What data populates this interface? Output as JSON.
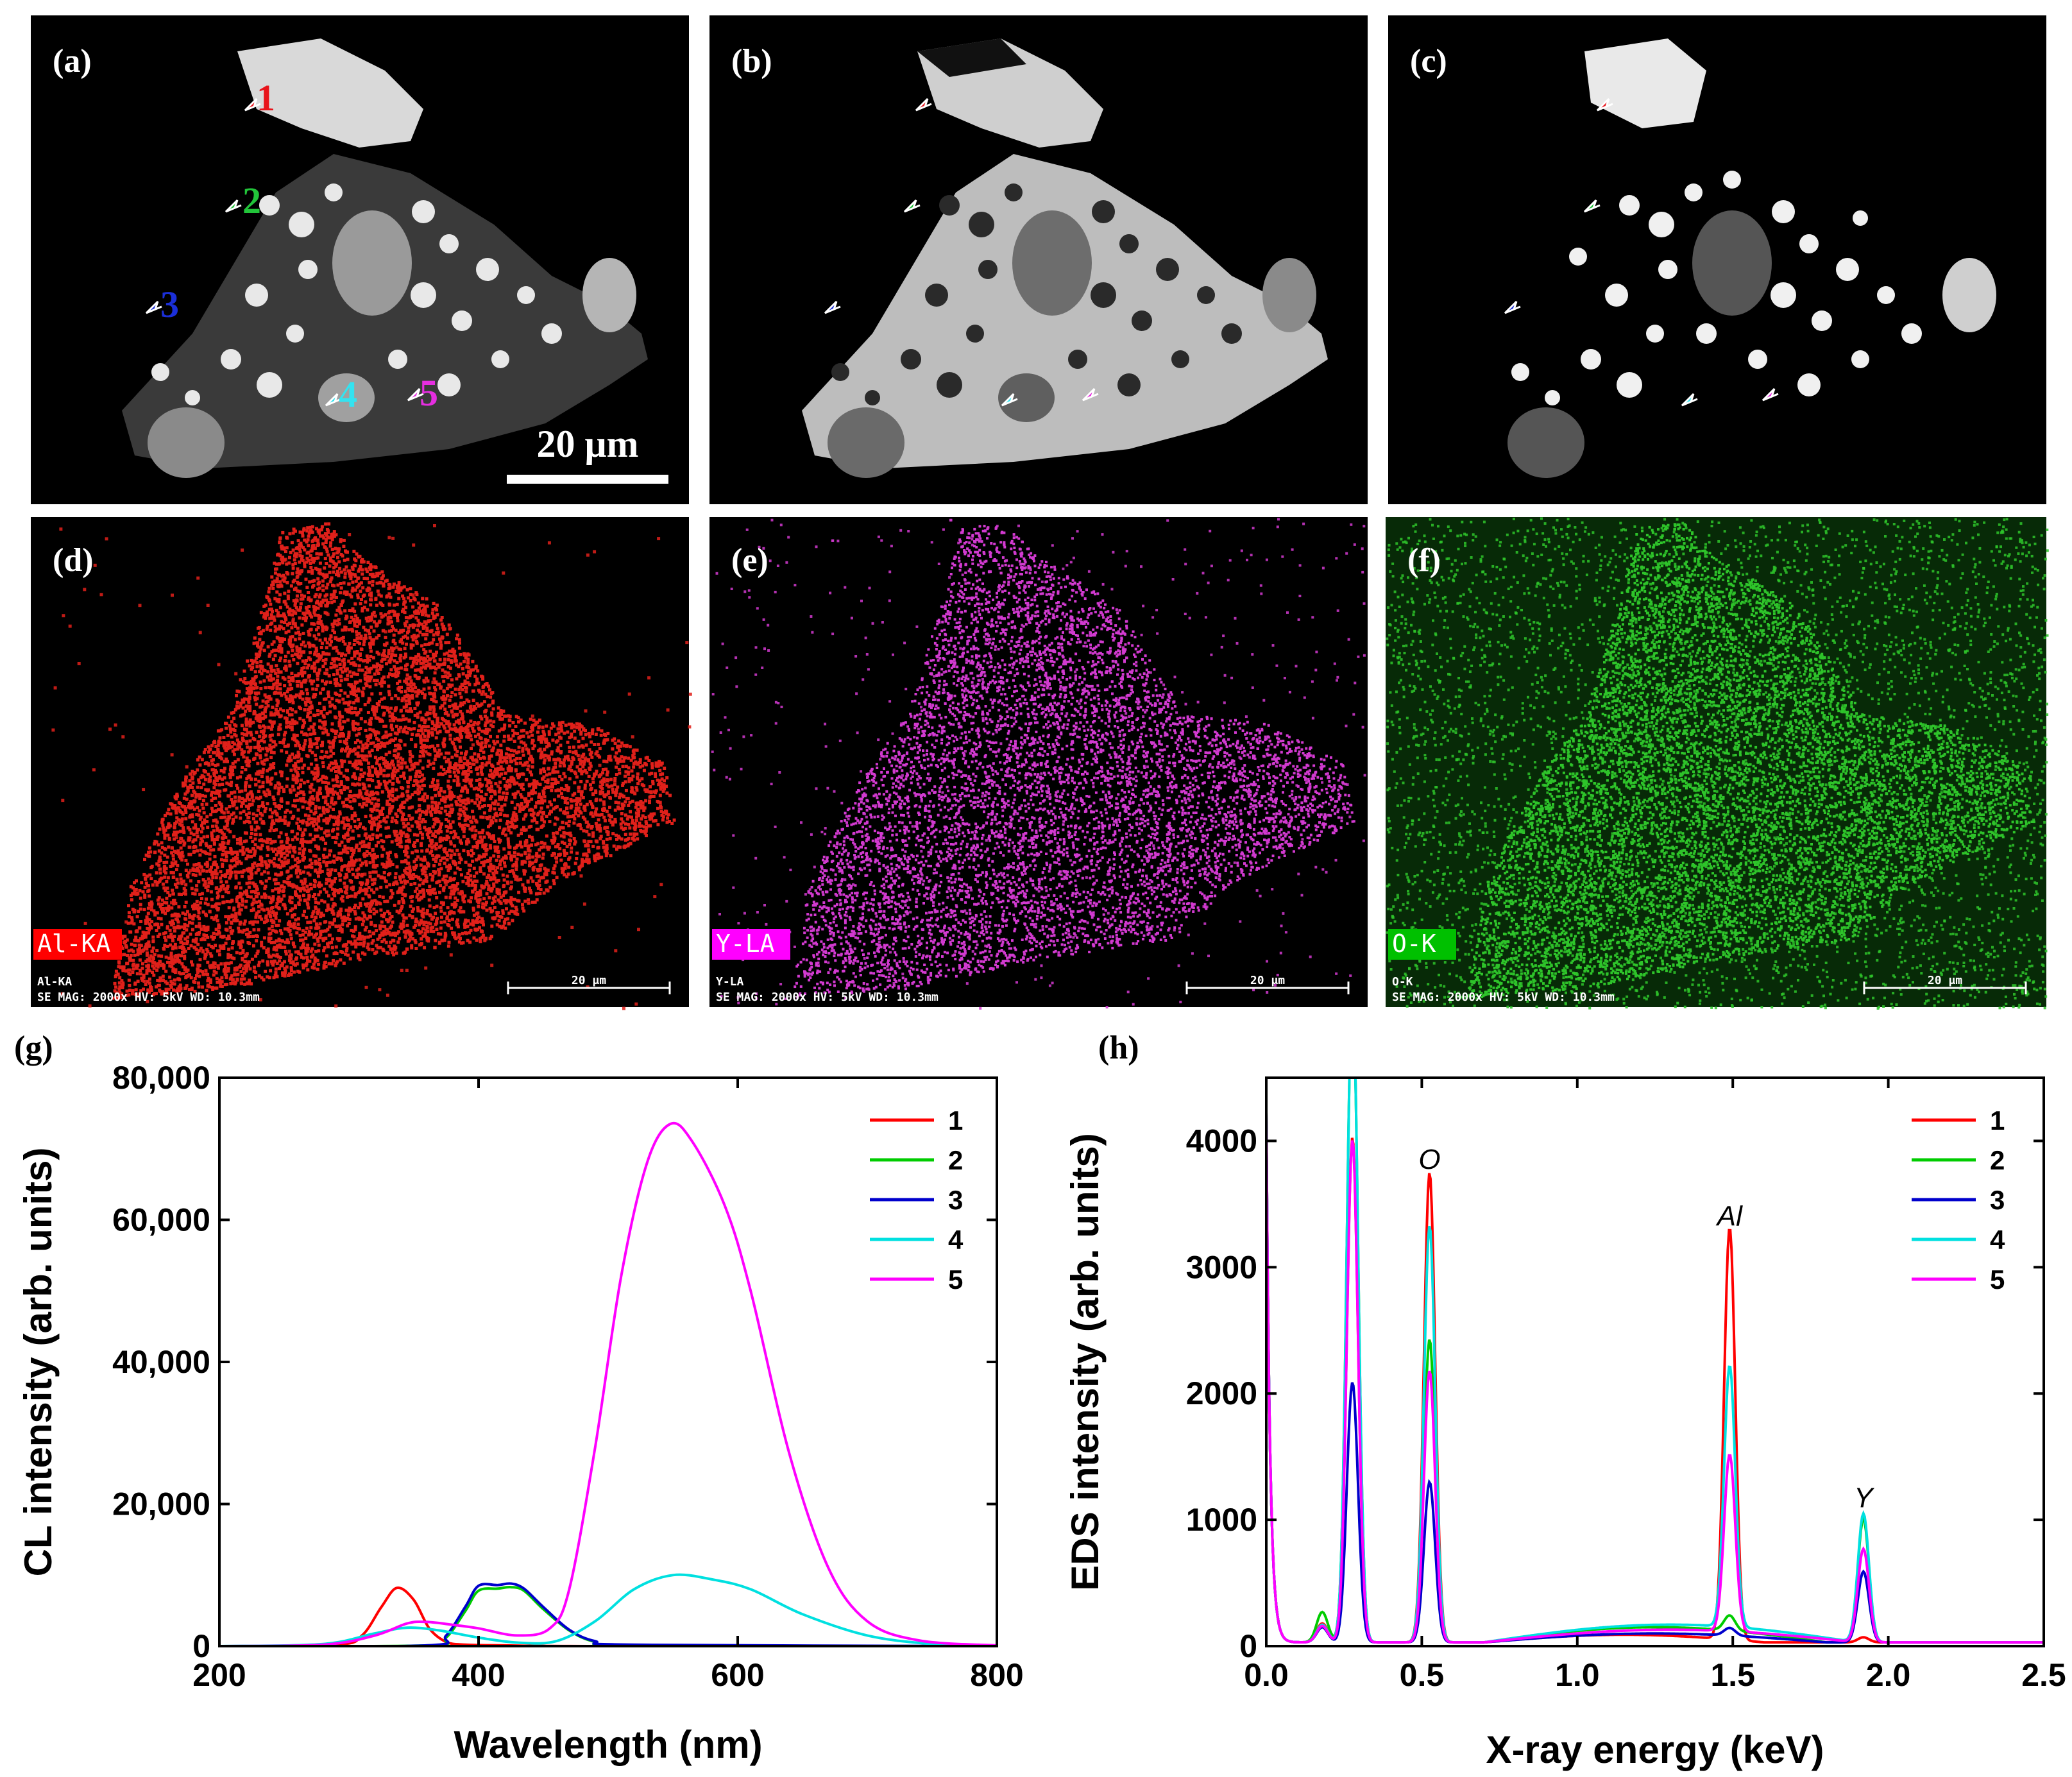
{
  "micrographs": {
    "scale_bar_text": "20 μm",
    "panels": [
      {
        "letter": "(a)",
        "markers": [
          "1",
          "2",
          "3",
          "4",
          "5"
        ]
      },
      {
        "letter": "(b)"
      },
      {
        "letter": "(c)"
      }
    ],
    "marker_colors": [
      "#e8141b",
      "#22c53a",
      "#1b2fd8",
      "#33e3f0",
      "#e62ee0"
    ]
  },
  "eds_maps": [
    {
      "letter": "(d)",
      "element_tag": "Al-KA",
      "caption_line1": "Al-KA",
      "caption_line2": "SE  MAG: 2000x  HV: 5kV  WD: 10.3mm",
      "scale_text": "20 μm",
      "tag_color": "#ff0000",
      "dot_color": "#e0201a"
    },
    {
      "letter": "(e)",
      "element_tag": "Y-LA",
      "caption_line1": "Y-LA",
      "caption_line2": "SE  MAG: 2000x  HV: 5kV  WD: 10.3mm",
      "scale_text": "20 μm",
      "tag_color": "#ff00ff",
      "dot_color": "#d23ad0"
    },
    {
      "letter": "(f)",
      "element_tag": "O-K",
      "caption_line1": "O-K",
      "caption_line2": "SE  MAG: 2000x  HV: 5kV  WD: 10.3mm",
      "scale_text": "20 μm",
      "tag_color": "#00c000",
      "dot_color": "#2ec42a"
    }
  ],
  "chart_data": [
    {
      "panel": "(g)",
      "type": "line",
      "xlabel": "Wavelength (nm)",
      "ylabel": "CL intensity (arb. units)",
      "xlim": [
        200,
        800
      ],
      "ylim": [
        0,
        80000
      ],
      "xticks": [
        200,
        400,
        600,
        800
      ],
      "yticks": [
        0,
        20000,
        40000,
        60000,
        80000
      ],
      "ytick_labels": [
        "0",
        "20,000",
        "40,000",
        "60,000",
        "80,000"
      ],
      "legend": "top-right",
      "series": [
        {
          "name": "1",
          "color": "#ff0000",
          "x": [
            200,
            290,
            310,
            325,
            337,
            350,
            362,
            375,
            390,
            420,
            500,
            800
          ],
          "y": [
            0,
            200,
            1500,
            5500,
            8200,
            6500,
            2500,
            600,
            200,
            100,
            0,
            0
          ]
        },
        {
          "name": "2",
          "color": "#00cc00",
          "x": [
            200,
            360,
            375,
            390,
            400,
            415,
            425,
            435,
            450,
            470,
            490,
            520,
            800
          ],
          "y": [
            0,
            100,
            1200,
            5000,
            7800,
            8100,
            8300,
            7800,
            5200,
            2200,
            600,
            100,
            0
          ]
        },
        {
          "name": "3",
          "color": "#0000cc",
          "x": [
            200,
            360,
            375,
            390,
            400,
            415,
            425,
            435,
            450,
            470,
            490,
            520,
            800
          ],
          "y": [
            0,
            100,
            1500,
            5600,
            8500,
            8600,
            8800,
            8100,
            5500,
            2300,
            700,
            200,
            0
          ]
        },
        {
          "name": "4",
          "color": "#00e0e0",
          "x": [
            200,
            280,
            320,
            345,
            370,
            400,
            430,
            460,
            490,
            520,
            550,
            580,
            610,
            650,
            700,
            750,
            800
          ],
          "y": [
            0,
            300,
            1800,
            2600,
            2200,
            1200,
            500,
            700,
            3500,
            8000,
            10000,
            9400,
            8000,
            4500,
            1500,
            300,
            0
          ]
        },
        {
          "name": "5",
          "color": "#ff00ff",
          "x": [
            200,
            280,
            320,
            345,
            360,
            380,
            400,
            430,
            455,
            470,
            490,
            510,
            530,
            548,
            565,
            590,
            610,
            640,
            670,
            700,
            740,
            800
          ],
          "y": [
            0,
            200,
            1500,
            3200,
            3400,
            3000,
            2500,
            1500,
            2500,
            8000,
            28000,
            52000,
            68000,
            73500,
            71000,
            62000,
            50000,
            27000,
            11000,
            3500,
            800,
            100
          ]
        }
      ]
    },
    {
      "panel": "(h)",
      "type": "line",
      "xlabel": "X-ray energy (keV)",
      "ylabel": "EDS intensity (arb. units)",
      "xlim": [
        0.0,
        2.5
      ],
      "ylim": [
        0,
        4500
      ],
      "xticks": [
        0.0,
        0.5,
        1.0,
        1.5,
        2.0,
        2.5
      ],
      "xtick_labels": [
        "0.0",
        "0.5",
        "1.0",
        "1.5",
        "2.0",
        "2.5"
      ],
      "yticks": [
        0,
        1000,
        2000,
        3000,
        4000
      ],
      "legend": "top-right",
      "peak_labels": [
        {
          "text": "O",
          "x": 0.525,
          "y": 3780
        },
        {
          "text": "Al",
          "x": 1.49,
          "y": 3330
        },
        {
          "text": "Y",
          "x": 1.92,
          "y": 1100
        }
      ],
      "series": [
        {
          "name": "1",
          "color": "#ff0000",
          "base": 30,
          "peaks": [
            [
              0.18,
              150
            ],
            [
              0.277,
              4000
            ],
            [
              0.525,
              3720
            ],
            [
              1.49,
              3260
            ],
            [
              1.92,
              40
            ]
          ],
          "bg": [
            [
              0.7,
              1.6,
              60
            ]
          ]
        },
        {
          "name": "2",
          "color": "#00cc00",
          "base": 30,
          "peaks": [
            [
              0.18,
              240
            ],
            [
              0.277,
              5200
            ],
            [
              0.525,
              2400
            ],
            [
              1.49,
              120
            ],
            [
              1.92,
              980
            ]
          ],
          "bg": [
            [
              0.7,
              1.8,
              120
            ]
          ]
        },
        {
          "name": "3",
          "color": "#0000cc",
          "base": 30,
          "peaks": [
            [
              0.18,
              120
            ],
            [
              0.277,
              2060
            ],
            [
              0.525,
              1270
            ],
            [
              1.49,
              60
            ],
            [
              1.92,
              560
            ]
          ],
          "bg": [
            [
              0.7,
              1.8,
              70
            ]
          ]
        },
        {
          "name": "4",
          "color": "#00e0e0",
          "base": 30,
          "peaks": [
            [
              0.18,
              140
            ],
            [
              0.277,
              5200
            ],
            [
              0.525,
              3300
            ],
            [
              1.49,
              2070
            ],
            [
              1.92,
              1020
            ]
          ],
          "bg": [
            [
              0.7,
              1.9,
              140
            ]
          ]
        },
        {
          "name": "5",
          "color": "#ff00ff",
          "base": 30,
          "peaks": [
            [
              0.18,
              130
            ],
            [
              0.277,
              3980
            ],
            [
              0.525,
              2150
            ],
            [
              1.49,
              1400
            ],
            [
              1.92,
              740
            ]
          ],
          "bg": [
            [
              0.7,
              1.9,
              100
            ]
          ]
        }
      ]
    }
  ]
}
